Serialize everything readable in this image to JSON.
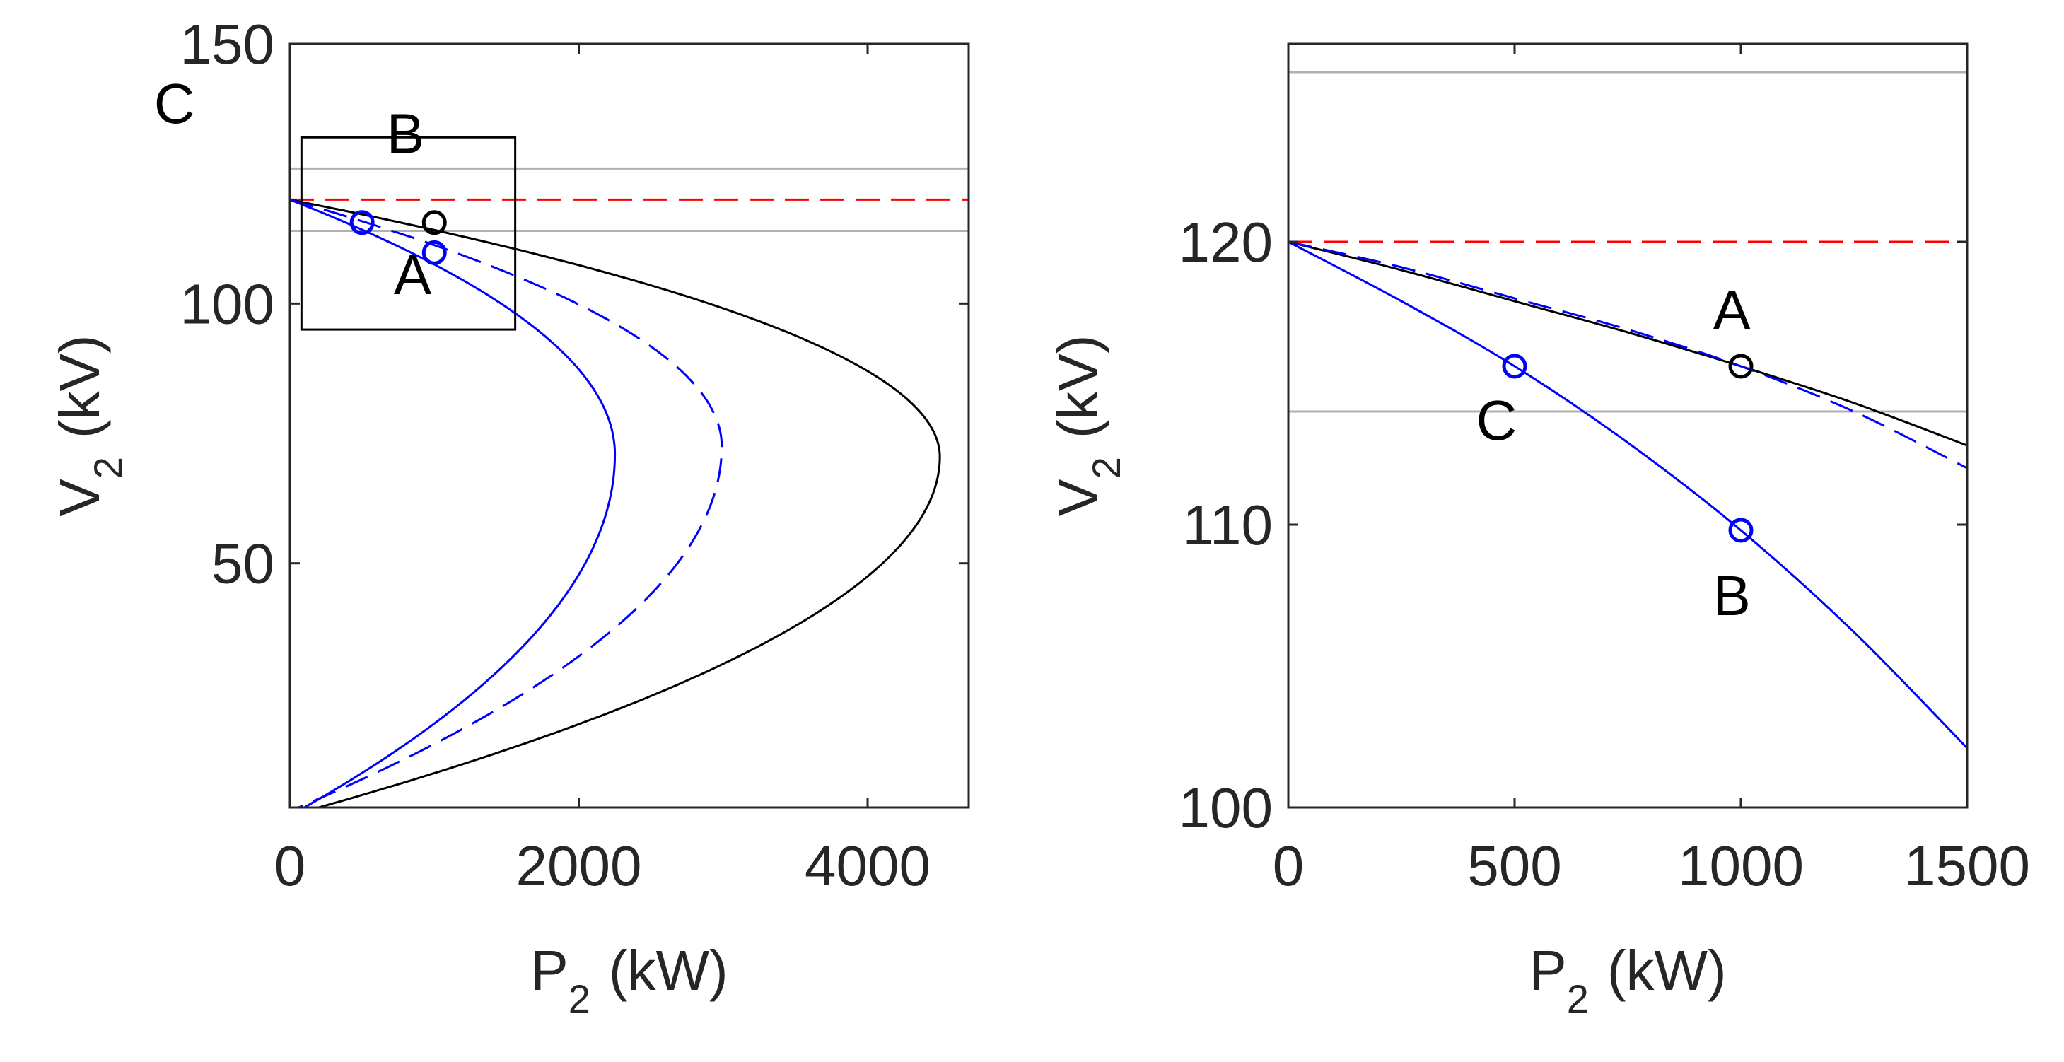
{
  "chart_data": [
    {
      "type": "line",
      "panel": "left",
      "xlabel": "P",
      "xlabel_sub": "2",
      "xlabel_unit": "(kW)",
      "ylabel": "V",
      "ylabel_sub": "2",
      "ylabel_unit": "(kV)",
      "xlim": [
        0,
        4700
      ],
      "ylim": [
        3,
        150
      ],
      "xticks": [
        0,
        2000,
        4000
      ],
      "xtick_labels": [
        "0",
        "2000",
        "4000"
      ],
      "yticks": [
        50,
        100,
        150
      ],
      "ytick_labels": [
        "50",
        "100",
        "150"
      ],
      "hlines": [
        {
          "name": "upper-limit",
          "y": 126,
          "color": "#b0b0b0",
          "style": "solid"
        },
        {
          "name": "nominal",
          "y": 120,
          "color": "#ff0000",
          "style": "dashed"
        },
        {
          "name": "lower-limit",
          "y": 114,
          "color": "#b0b0b0",
          "style": "solid"
        }
      ],
      "zoom_box": {
        "x": [
          80,
          1560
        ],
        "y": [
          95,
          132
        ]
      },
      "series": [
        {
          "name": "black-solid",
          "color": "#000000",
          "style": "solid",
          "pmax": 4500,
          "vcrit": 70.5,
          "v_top": 120,
          "v_bottom": 3,
          "p_at_bottom": 200
        },
        {
          "name": "blue-dashed",
          "color": "#0000ff",
          "style": "dashed",
          "pmax": 2990,
          "vcrit": 72.5,
          "v_top": 120,
          "v_bottom": 3,
          "p_at_bottom": 60
        },
        {
          "name": "blue-solid",
          "color": "#0000ff",
          "style": "solid",
          "pmax": 2250,
          "vcrit": 71,
          "v_top": 120,
          "v_bottom": 3,
          "p_at_bottom": 100
        }
      ],
      "points": [
        {
          "label": "A",
          "x": 1000,
          "y": 115.6,
          "color": "#000000",
          "label_dx": -15,
          "label_dy": -10
        },
        {
          "label": "B",
          "x": 1000,
          "y": 109.8,
          "color": "#0000ff",
          "label_dx": -20,
          "label_dy": 23
        },
        {
          "label": "C",
          "x": 500,
          "y": 115.6,
          "color": "#0000ff",
          "label_dx": -130,
          "label_dy": 23
        }
      ]
    },
    {
      "type": "line",
      "panel": "right",
      "xlabel": "P",
      "xlabel_sub": "2",
      "xlabel_unit": "(kW)",
      "ylabel": "V",
      "ylabel_sub": "2",
      "ylabel_unit": "(kV)",
      "xlim": [
        0,
        1500
      ],
      "ylim": [
        100,
        127
      ],
      "xticks": [
        0,
        500,
        1000,
        1500
      ],
      "xtick_labels": [
        "0",
        "500",
        "1000",
        "1500"
      ],
      "yticks": [
        100,
        110,
        120
      ],
      "ytick_labels": [
        "100",
        "110",
        "120"
      ],
      "hlines": [
        {
          "name": "upper-limit",
          "y": 126,
          "color": "#b0b0b0",
          "style": "solid"
        },
        {
          "name": "nominal",
          "y": 120,
          "color": "#ff0000",
          "style": "dashed"
        },
        {
          "name": "lower-limit",
          "y": 114,
          "color": "#b0b0b0",
          "style": "solid"
        }
      ],
      "series": [
        {
          "name": "black-solid",
          "color": "#000000",
          "style": "solid",
          "x": [
            0,
            250,
            500,
            750,
            1000,
            1250,
            1500
          ],
          "y": [
            120,
            119.0,
            117.9,
            116.8,
            115.6,
            114.3,
            112.8
          ]
        },
        {
          "name": "blue-dashed",
          "color": "#0000ff",
          "style": "dashed",
          "x": [
            0,
            250,
            500,
            750,
            1000,
            1250,
            1500
          ],
          "y": [
            120,
            119.1,
            118.0,
            116.9,
            115.6,
            114.0,
            112.0
          ]
        },
        {
          "name": "blue-solid",
          "color": "#0000ff",
          "style": "solid",
          "x": [
            0,
            250,
            500,
            750,
            1000,
            1250,
            1500
          ],
          "y": [
            120,
            117.9,
            115.6,
            112.9,
            109.8,
            106.2,
            102.1
          ]
        }
      ],
      "points": [
        {
          "label": "A",
          "x": 1000,
          "y": 115.6,
          "color": "#000000",
          "label_dx": -20,
          "label_dy": 2
        },
        {
          "label": "B",
          "x": 1000,
          "y": 109.8,
          "color": "#0000ff",
          "label_dx": -20,
          "label_dy": -2.3
        },
        {
          "label": "C",
          "x": 500,
          "y": 115.6,
          "color": "#0000ff",
          "label_dx": -40,
          "label_dy": -1.9
        }
      ]
    }
  ]
}
